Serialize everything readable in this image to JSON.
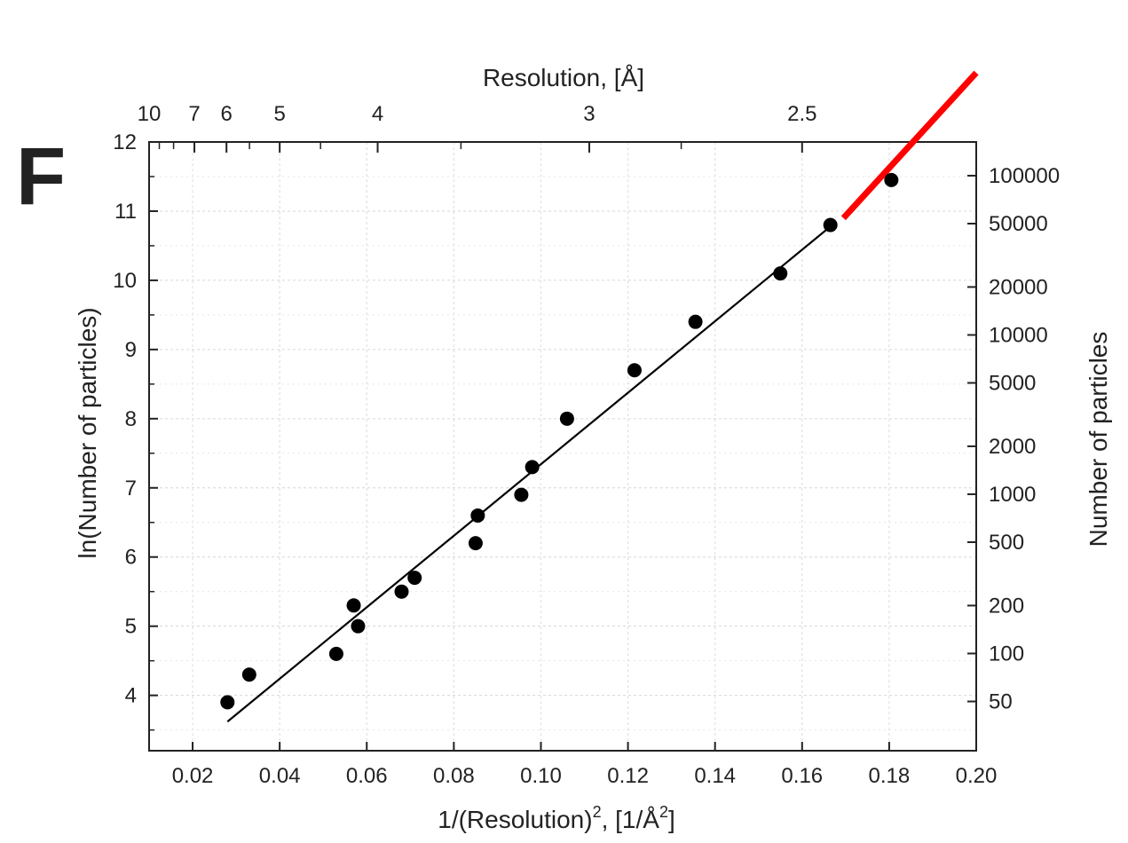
{
  "chart_data": {
    "type": "scatter",
    "panel_label": "F",
    "xlabel": "1/(Resolution)",
    "xlabel_sup": "2",
    "xlabel_tail": ", [1/Å",
    "xlabel_tail_sup": "2",
    "xlabel_end": "]",
    "ylabel": "ln(Number of particles)",
    "ylabel_right": "Number of particles",
    "xlabel_top": "Resolution, [Å]",
    "xlim": [
      0.01,
      0.2
    ],
    "ylim": [
      3.2,
      12
    ],
    "grid": true,
    "x_ticks": [
      0.02,
      0.04,
      0.06,
      0.08,
      0.1,
      0.12,
      0.14,
      0.16,
      0.18,
      0.2
    ],
    "x_tick_labels": [
      "0.02",
      "0.04",
      "0.06",
      "0.08",
      "0.10",
      "0.12",
      "0.14",
      "0.16",
      "0.18",
      "0.20"
    ],
    "y_ticks": [
      4,
      5,
      6,
      7,
      8,
      9,
      10,
      11,
      12
    ],
    "y_tick_labels": [
      "4",
      "5",
      "6",
      "7",
      "8",
      "9",
      "10",
      "11",
      "12"
    ],
    "top_ticks": [
      {
        "label": "10",
        "resolution": 10
      },
      {
        "label": "7",
        "resolution": 7
      },
      {
        "label": "6",
        "resolution": 6
      },
      {
        "label": "5",
        "resolution": 5
      },
      {
        "label": "4",
        "resolution": 4
      },
      {
        "label": "3",
        "resolution": 3
      },
      {
        "label": "2.5",
        "resolution": 2.5
      }
    ],
    "top_minor_ticks": [
      9,
      8
    ],
    "right_ticks": [
      {
        "label": "50",
        "count": 50
      },
      {
        "label": "100",
        "count": 100
      },
      {
        "label": "200",
        "count": 200
      },
      {
        "label": "500",
        "count": 500
      },
      {
        "label": "1000",
        "count": 1000
      },
      {
        "label": "2000",
        "count": 2000
      },
      {
        "label": "5000",
        "count": 5000
      },
      {
        "label": "10000",
        "count": 10000
      },
      {
        "label": "20000",
        "count": 20000
      },
      {
        "label": "50000",
        "count": 50000
      },
      {
        "label": "100000",
        "count": 100000
      }
    ],
    "points": [
      {
        "x": 0.028,
        "y": 3.9
      },
      {
        "x": 0.033,
        "y": 4.3
      },
      {
        "x": 0.053,
        "y": 4.6
      },
      {
        "x": 0.057,
        "y": 5.3
      },
      {
        "x": 0.058,
        "y": 5.0
      },
      {
        "x": 0.068,
        "y": 5.5
      },
      {
        "x": 0.071,
        "y": 5.7
      },
      {
        "x": 0.085,
        "y": 6.2
      },
      {
        "x": 0.0855,
        "y": 6.6
      },
      {
        "x": 0.0955,
        "y": 6.9
      },
      {
        "x": 0.098,
        "y": 7.3
      },
      {
        "x": 0.106,
        "y": 8.0
      },
      {
        "x": 0.1215,
        "y": 8.7
      },
      {
        "x": 0.1355,
        "y": 9.4
      },
      {
        "x": 0.155,
        "y": 10.1
      },
      {
        "x": 0.1665,
        "y": 10.8
      },
      {
        "x": 0.1805,
        "y": 11.45
      }
    ],
    "fit_line": {
      "x": [
        0.028,
        0.1675
      ],
      "y": [
        3.62,
        10.83
      ],
      "color": "#000000"
    },
    "extrapolation_line": {
      "x": [
        0.1695,
        0.2
      ],
      "y": [
        10.9,
        13.0
      ],
      "color": "#ff0000"
    },
    "point_color": "#000000"
  }
}
